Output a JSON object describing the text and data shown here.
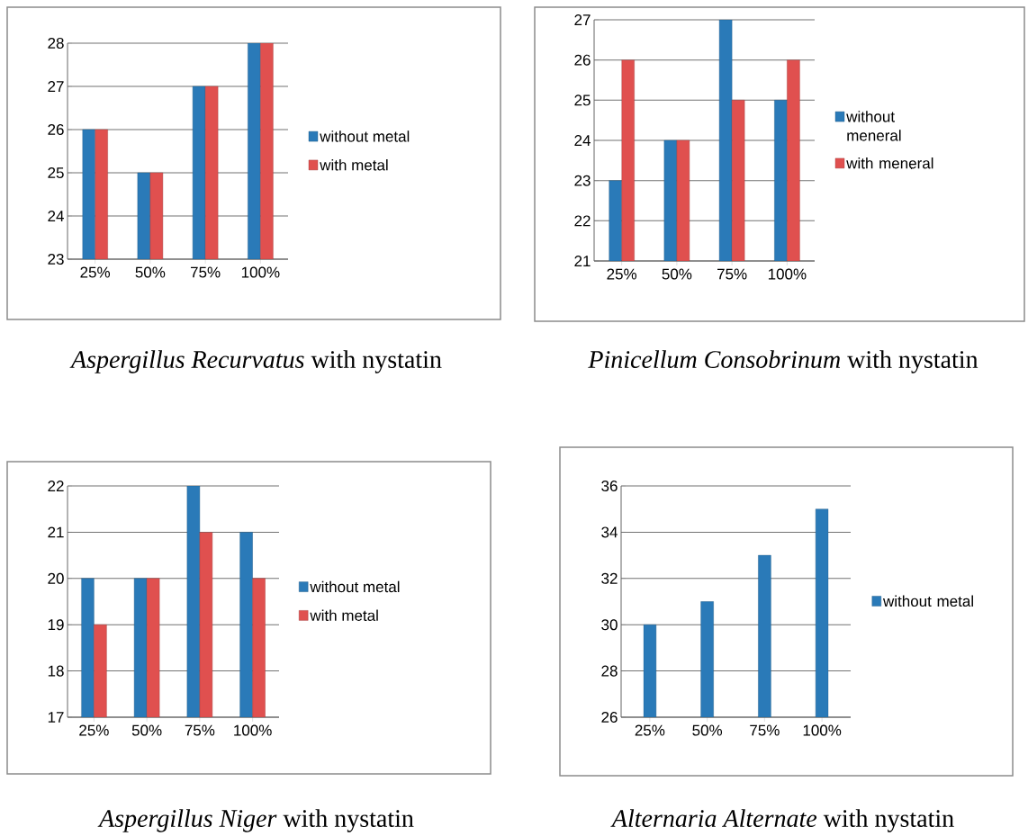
{
  "chart_data": [
    {
      "type": "bar",
      "title": "*Aspergillus Recurvatus* with nystatin",
      "categories": [
        "25%",
        "50%",
        "75%",
        "100%"
      ],
      "series": [
        {
          "name": "without metal",
          "color": "#2a7ab8",
          "values": [
            26,
            25,
            27,
            28
          ]
        },
        {
          "name": "with metal",
          "color": "#e0504f",
          "values": [
            26,
            25,
            27,
            28
          ]
        }
      ],
      "ylim": [
        23,
        28
      ],
      "yticks": [
        23,
        24,
        25,
        26,
        27,
        28
      ],
      "grid": "y",
      "legend": "right"
    },
    {
      "type": "bar",
      "title": "*Pinicellum Consobrinum* with nystatin",
      "categories": [
        "25%",
        "50%",
        "75%",
        "100%"
      ],
      "series": [
        {
          "name": "without meneral",
          "color": "#2a7ab8",
          "values": [
            23,
            24,
            27,
            25
          ]
        },
        {
          "name": "with meneral",
          "color": "#e0504f",
          "values": [
            26,
            24,
            25,
            26
          ]
        }
      ],
      "ylim": [
        21,
        27
      ],
      "yticks": [
        21,
        22,
        23,
        24,
        25,
        26,
        27
      ],
      "grid": "y",
      "legend": "right"
    },
    {
      "type": "bar",
      "title": "*Aspergillus Niger* with nystatin",
      "categories": [
        "25%",
        "50%",
        "75%",
        "100%"
      ],
      "series": [
        {
          "name": "without metal",
          "color": "#2a7ab8",
          "values": [
            20,
            20,
            22,
            21
          ]
        },
        {
          "name": "with metal",
          "color": "#e0504f",
          "values": [
            19,
            20,
            21,
            20
          ]
        }
      ],
      "ylim": [
        17,
        22
      ],
      "yticks": [
        17,
        18,
        19,
        20,
        21,
        22
      ],
      "grid": "y",
      "legend": "right"
    },
    {
      "type": "bar",
      "title": "*Alternaria Alternate* with nystatin",
      "categories": [
        "25%",
        "50%",
        "75%",
        "100%"
      ],
      "series": [
        {
          "name": "without metal",
          "color": "#2a7ab8",
          "values": [
            30,
            31,
            33,
            35
          ]
        }
      ],
      "ylim": [
        26,
        36
      ],
      "yticks": [
        26,
        28,
        30,
        32,
        34,
        36
      ],
      "grid": "y",
      "legend": "right"
    }
  ]
}
